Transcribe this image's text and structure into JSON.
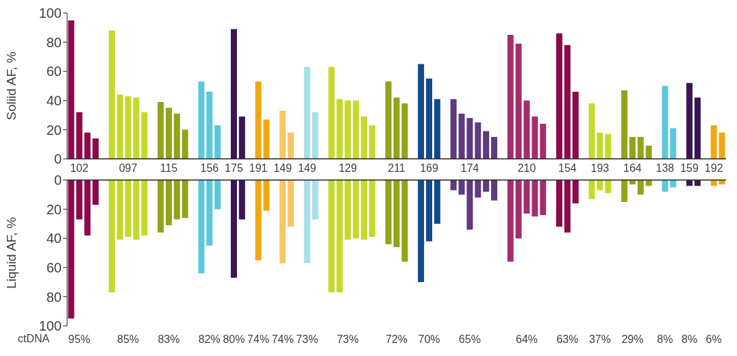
{
  "chart_data": [
    {
      "type": "bar",
      "ylabel": "Soliid AF, %",
      "ylim": [
        0,
        100
      ],
      "yticks": [
        0,
        20,
        40,
        60,
        80,
        100
      ],
      "grid": false,
      "legend": false,
      "categories": [
        null,
        "102",
        null,
        null,
        null,
        null,
        null,
        "097",
        null,
        null,
        null,
        null,
        "115",
        null,
        null,
        null,
        null,
        "156",
        null,
        null,
        "175",
        null,
        null,
        "191",
        null,
        null,
        "149",
        null,
        null,
        "149",
        null,
        null,
        null,
        null,
        "129",
        null,
        null,
        null,
        null,
        null,
        "211",
        null,
        null,
        null,
        "169",
        null,
        null,
        null,
        null,
        "174",
        null,
        null,
        null,
        null,
        null,
        null,
        "210",
        null,
        null,
        null,
        null,
        "154",
        null,
        null,
        null,
        "193",
        null,
        null,
        null,
        "164",
        null,
        null,
        null,
        "138",
        null,
        null,
        "159",
        null,
        null,
        "192",
        null
      ],
      "values": [
        95,
        32,
        18,
        14,
        null,
        88,
        44,
        43,
        42,
        32,
        null,
        39,
        35,
        31,
        20,
        null,
        53,
        46,
        23,
        null,
        89,
        29,
        null,
        53,
        27,
        null,
        33,
        18,
        null,
        63,
        32,
        null,
        63,
        41,
        40,
        40,
        29,
        23,
        null,
        53,
        42,
        38,
        null,
        65,
        55,
        41,
        null,
        41,
        31,
        28,
        25,
        19,
        15,
        null,
        85,
        79,
        40,
        29,
        24,
        null,
        86,
        78,
        46,
        null,
        38,
        18,
        17,
        null,
        47,
        15,
        15,
        9,
        null,
        50,
        21,
        null,
        52,
        42,
        null,
        23,
        18
      ],
      "colors": [
        "#8c0a4b",
        "#8c0a4b",
        "#8c0a4b",
        "#8c0a4b",
        null,
        "#c5d92a",
        "#c5d92a",
        "#c5d92a",
        "#c5d92a",
        "#c5d92a",
        null,
        "#93a31a",
        "#93a31a",
        "#93a31a",
        "#93a31a",
        null,
        "#5bc8dc",
        "#5bc8dc",
        "#5bc8dc",
        null,
        "#3a1554",
        "#3a1554",
        null,
        "#f0a812",
        "#f0a812",
        null,
        "#f7c766",
        "#f7c766",
        null,
        "#a6e0ea",
        "#a6e0ea",
        null,
        "#c5d92a",
        "#c5d92a",
        "#c5d92a",
        "#c5d92a",
        "#c5d92a",
        "#c5d92a",
        null,
        "#93a31a",
        "#93a31a",
        "#93a31a",
        null,
        "#124a8c",
        "#124a8c",
        "#124a8c",
        null,
        "#5e3a7e",
        "#5e3a7e",
        "#5e3a7e",
        "#5e3a7e",
        "#5e3a7e",
        "#5e3a7e",
        null,
        "#a32e6e",
        "#a32e6e",
        "#a32e6e",
        "#a32e6e",
        "#a32e6e",
        null,
        "#8c0a4b",
        "#8c0a4b",
        "#8c0a4b",
        null,
        "#c5d92a",
        "#c5d92a",
        "#c5d92a",
        null,
        "#93a31a",
        "#93a31a",
        "#93a31a",
        "#93a31a",
        null,
        "#5bc8dc",
        "#5bc8dc",
        null,
        "#3a1554",
        "#3a1554",
        null,
        "#f0a812",
        "#f0a812"
      ]
    },
    {
      "type": "bar",
      "ylabel": "Liquid AF, %",
      "xlabel": "ctDNA",
      "ylim": [
        100,
        0
      ],
      "yticks": [
        0,
        20,
        40,
        60,
        80,
        100
      ],
      "grid": false,
      "legend": false,
      "categories": [
        null,
        "95%",
        null,
        null,
        null,
        null,
        null,
        "85%",
        null,
        null,
        null,
        null,
        "83%",
        null,
        null,
        null,
        null,
        "82%",
        null,
        null,
        "80%",
        null,
        null,
        "74%",
        null,
        null,
        "74%",
        null,
        null,
        "73%",
        null,
        null,
        null,
        null,
        "73%",
        null,
        null,
        null,
        null,
        null,
        "72%",
        null,
        null,
        null,
        "70%",
        null,
        null,
        null,
        null,
        "65%",
        null,
        null,
        null,
        null,
        null,
        null,
        "64%",
        null,
        null,
        null,
        null,
        "63%",
        null,
        null,
        null,
        "37%",
        null,
        null,
        null,
        "29%",
        null,
        null,
        null,
        "8%",
        null,
        null,
        "8%",
        null,
        null,
        "6%",
        null
      ],
      "values": [
        95,
        27,
        38,
        17,
        null,
        77,
        41,
        39,
        41,
        38,
        null,
        36,
        31,
        27,
        26,
        null,
        64,
        45,
        20,
        null,
        67,
        27,
        null,
        55,
        21,
        null,
        57,
        32,
        null,
        57,
        27,
        null,
        77,
        77,
        41,
        40,
        41,
        39,
        null,
        44,
        46,
        56,
        null,
        70,
        42,
        30,
        null,
        7,
        10,
        34,
        12,
        8,
        14,
        null,
        56,
        40,
        23,
        25,
        24,
        null,
        32,
        36,
        16,
        null,
        13,
        7,
        9,
        null,
        15,
        3,
        10,
        4,
        null,
        8,
        5,
        null,
        4,
        4,
        null,
        4,
        3
      ],
      "colors": [
        "#8c0a4b",
        "#8c0a4b",
        "#8c0a4b",
        "#8c0a4b",
        null,
        "#c5d92a",
        "#c5d92a",
        "#c5d92a",
        "#c5d92a",
        "#c5d92a",
        null,
        "#93a31a",
        "#93a31a",
        "#93a31a",
        "#93a31a",
        null,
        "#5bc8dc",
        "#5bc8dc",
        "#5bc8dc",
        null,
        "#3a1554",
        "#3a1554",
        null,
        "#f0a812",
        "#f0a812",
        null,
        "#f7c766",
        "#f7c766",
        null,
        "#a6e0ea",
        "#a6e0ea",
        null,
        "#c5d92a",
        "#c5d92a",
        "#c5d92a",
        "#c5d92a",
        "#c5d92a",
        "#c5d92a",
        null,
        "#93a31a",
        "#93a31a",
        "#93a31a",
        null,
        "#124a8c",
        "#124a8c",
        "#124a8c",
        null,
        "#5e3a7e",
        "#5e3a7e",
        "#5e3a7e",
        "#5e3a7e",
        "#5e3a7e",
        "#5e3a7e",
        null,
        "#a32e6e",
        "#a32e6e",
        "#a32e6e",
        "#a32e6e",
        "#a32e6e",
        null,
        "#8c0a4b",
        "#8c0a4b",
        "#8c0a4b",
        null,
        "#c5d92a",
        "#c5d92a",
        "#c5d92a",
        null,
        "#93a31a",
        "#93a31a",
        "#93a31a",
        "#93a31a",
        null,
        "#5bc8dc",
        "#5bc8dc",
        null,
        "#3a1554",
        "#3a1554",
        null,
        "#f0a812",
        "#f0a812"
      ]
    }
  ]
}
